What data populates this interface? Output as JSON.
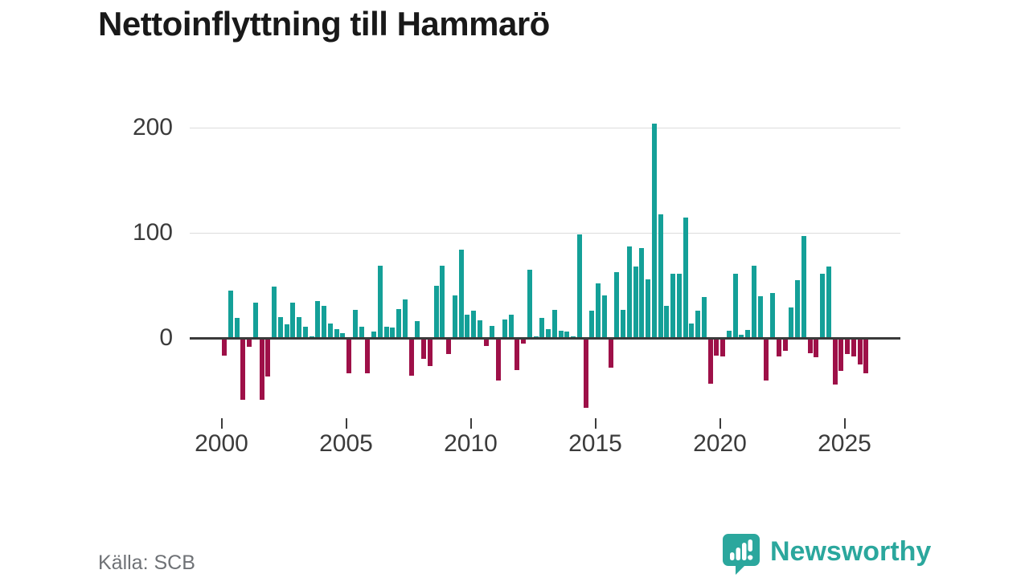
{
  "title": "Nettoinflyttning till Hammarö",
  "source": "Källa: SCB",
  "branding": {
    "name": "Newsworthy",
    "icon": "newsworthy-chart-bubble-icon",
    "color": "#2ba79d"
  },
  "chart_data": {
    "type": "bar",
    "title": "Nettoinflyttning till Hammarö",
    "frequency": "quarterly",
    "x_start_year": 2000,
    "xlabel": "",
    "ylabel": "",
    "xticks": [
      2000,
      2005,
      2010,
      2015,
      2020,
      2025
    ],
    "yticks": [
      0,
      100,
      200
    ],
    "ylim": [
      -75,
      210
    ],
    "grid": "horizontal",
    "legend": "none",
    "colors": {
      "positive": "#14a098",
      "negative": "#9e1048"
    },
    "values": [
      -15,
      44,
      18,
      -57,
      -7,
      33,
      -57,
      -35,
      48,
      19,
      12,
      33,
      19,
      10,
      1,
      34,
      30,
      13,
      8,
      4,
      -32,
      26,
      10,
      -32,
      5,
      68,
      10,
      9,
      27,
      36,
      -34,
      15,
      -18,
      -25,
      49,
      68,
      -14,
      40,
      83,
      21,
      25,
      16,
      -6,
      11,
      -39,
      17,
      21,
      -29,
      -4,
      64,
      1,
      18,
      8,
      26,
      6,
      5,
      1,
      98,
      -65,
      25,
      51,
      40,
      -27,
      62,
      26,
      86,
      67,
      85,
      55,
      203,
      117,
      30,
      60,
      60,
      114,
      13,
      25,
      38,
      -42,
      -15,
      -16,
      6,
      60,
      2,
      7,
      68,
      39,
      -39,
      42,
      -16,
      -11,
      28,
      54,
      96,
      -13,
      -17,
      60,
      67,
      -43,
      -30,
      -14,
      -16,
      -24,
      -32
    ]
  }
}
